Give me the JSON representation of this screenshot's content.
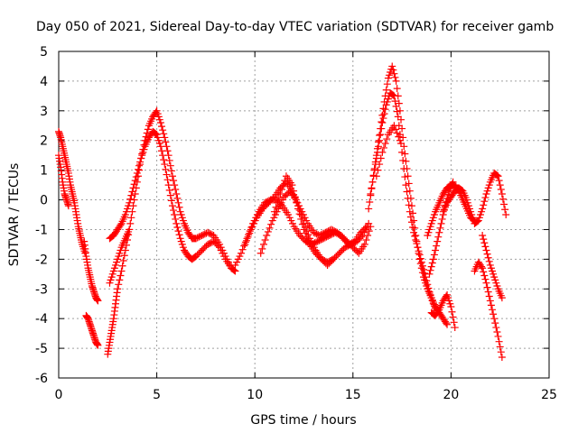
{
  "chart_data": {
    "type": "scatter",
    "title": "Day 050 of 2021, Sidereal Day-to-day VTEC variation (SDTVAR) for receiver gamb",
    "xlabel": "GPS time / hours",
    "ylabel": "SDTVAR / TECUs",
    "xlim": [
      0,
      25
    ],
    "ylim": [
      -6,
      5
    ],
    "xticks": [
      0,
      5,
      10,
      15,
      20,
      25
    ],
    "yticks": [
      -6,
      -5,
      -4,
      -3,
      -2,
      -1,
      0,
      1,
      2,
      3,
      4,
      5
    ],
    "grid": true,
    "marker": "+",
    "color": "#ff0000",
    "series": [
      {
        "name": "SDTVAR",
        "tracks": [
          {
            "x": [
              0.0,
              0.1,
              0.2,
              0.3,
              0.4,
              0.5,
              0.6,
              0.7,
              0.8,
              0.9,
              1.0,
              1.1,
              1.2,
              1.35
            ],
            "y": [
              2.3,
              2.1,
              1.8,
              1.5,
              1.2,
              0.9,
              0.5,
              0.2,
              -0.1,
              -0.5,
              -0.9,
              -1.2,
              -1.5,
              -1.8
            ]
          },
          {
            "x": [
              0.0,
              0.1,
              0.2,
              0.3,
              0.4,
              0.5
            ],
            "y": [
              1.5,
              1.1,
              0.6,
              0.2,
              0.0,
              -0.2
            ]
          },
          {
            "x": [
              1.3,
              1.4,
              1.5,
              1.6,
              1.7,
              1.8,
              1.9,
              2.0
            ],
            "y": [
              -1.4,
              -1.9,
              -2.3,
              -2.6,
              -2.9,
              -3.1,
              -3.3,
              -3.4
            ]
          },
          {
            "x": [
              1.4,
              1.5,
              1.6,
              1.7,
              1.8,
              1.9,
              2.0
            ],
            "y": [
              -3.9,
              -4.0,
              -4.2,
              -4.4,
              -4.6,
              -4.8,
              -4.9
            ]
          },
          {
            "x": [
              2.5,
              2.6,
              2.7,
              2.8,
              2.9,
              3.0,
              3.2,
              3.4,
              3.6,
              3.8,
              4.0,
              4.2,
              4.4,
              4.6,
              4.8,
              5.0,
              5.2,
              5.4,
              5.6,
              5.8,
              6.0,
              6.2,
              6.4,
              6.6,
              6.8,
              7.0,
              7.3,
              7.6,
              7.9,
              8.2,
              8.5,
              8.8,
              9.0
            ],
            "y": [
              -5.2,
              -4.8,
              -4.4,
              -4.0,
              -3.5,
              -3.0,
              -2.4,
              -1.7,
              -1.0,
              -0.2,
              0.6,
              1.4,
              2.0,
              2.5,
              2.8,
              3.0,
              2.6,
              2.1,
              1.5,
              0.8,
              0.2,
              -0.4,
              -0.8,
              -1.1,
              -1.3,
              -1.3,
              -1.2,
              -1.1,
              -1.2,
              -1.5,
              -1.9,
              -2.3,
              -2.4
            ]
          },
          {
            "x": [
              2.6,
              2.8,
              3.0,
              3.2,
              3.4,
              3.6,
              3.8,
              4.0,
              4.2,
              4.4,
              4.6,
              4.8,
              5.0,
              5.2,
              5.4,
              5.6,
              5.8,
              6.0,
              6.2,
              6.4,
              6.6,
              6.8,
              7.0,
              7.3,
              7.6,
              7.9,
              8.2,
              8.5,
              8.8
            ],
            "y": [
              -1.3,
              -1.2,
              -1.0,
              -0.8,
              -0.5,
              -0.1,
              0.4,
              0.9,
              1.4,
              1.8,
              2.1,
              2.3,
              2.2,
              1.8,
              1.2,
              0.5,
              -0.2,
              -0.8,
              -1.3,
              -1.7,
              -1.9,
              -2.0,
              -1.9,
              -1.7,
              -1.5,
              -1.4,
              -1.6,
              -2.0,
              -2.3
            ]
          },
          {
            "x": [
              2.6,
              2.8,
              3.0,
              3.2,
              3.4,
              3.6
            ],
            "y": [
              -2.8,
              -2.4,
              -2.0,
              -1.6,
              -1.3,
              -1.0
            ]
          },
          {
            "x": [
              9.0,
              9.3,
              9.6,
              9.9,
              10.2,
              10.5,
              10.8,
              11.1,
              11.4,
              11.7,
              12.0,
              12.3,
              12.6,
              12.9,
              13.2,
              13.5,
              13.8,
              14.1,
              14.4,
              14.7,
              15.0,
              15.3,
              15.6,
              15.9
            ],
            "y": [
              -2.2,
              -1.8,
              -1.3,
              -0.8,
              -0.4,
              -0.1,
              0.0,
              0.0,
              -0.2,
              -0.5,
              -0.9,
              -1.2,
              -1.4,
              -1.5,
              -1.4,
              -1.3,
              -1.2,
              -1.1,
              -1.2,
              -1.4,
              -1.6,
              -1.8,
              -1.5,
              -0.9
            ]
          },
          {
            "x": [
              9.5,
              9.8,
              10.1,
              10.4,
              10.7,
              11.0,
              11.3,
              11.6,
              11.9,
              12.2,
              12.5,
              12.8,
              13.1,
              13.4,
              13.7,
              14.0,
              14.3,
              14.6,
              14.9,
              15.2,
              15.5,
              15.8
            ],
            "y": [
              -1.5,
              -1.0,
              -0.6,
              -0.3,
              -0.1,
              0.1,
              0.4,
              0.6,
              0.3,
              -0.2,
              -0.8,
              -1.3,
              -1.7,
              -2.0,
              -2.1,
              -2.0,
              -1.8,
              -1.6,
              -1.5,
              -1.4,
              -1.2,
              -0.8
            ]
          },
          {
            "x": [
              10.3,
              10.6,
              10.9,
              11.2,
              11.5,
              11.8,
              12.1,
              12.4,
              12.7,
              13.0,
              13.3,
              13.6,
              13.9,
              14.2,
              14.5,
              14.8,
              15.1,
              15.4,
              15.7
            ],
            "y": [
              -1.8,
              -1.2,
              -0.7,
              -0.3,
              0.1,
              0.3,
              0.0,
              -0.4,
              -0.8,
              -1.1,
              -1.2,
              -1.1,
              -1.0,
              -1.1,
              -1.3,
              -1.5,
              -1.4,
              -1.1,
              -0.9
            ]
          },
          {
            "x": [
              11.0,
              11.3,
              11.6,
              11.9,
              12.2,
              12.5,
              12.8,
              13.1,
              13.4,
              13.7,
              14.0
            ],
            "y": [
              -0.4,
              0.2,
              0.8,
              0.5,
              -0.3,
              -1.0,
              -1.5,
              -1.8,
              -2.0,
              -2.2,
              -2.0
            ]
          },
          {
            "x": [
              15.8,
              16.0,
              16.2,
              16.4,
              16.6,
              16.8,
              17.0,
              17.2,
              17.4,
              17.6,
              17.8,
              18.0,
              18.2,
              18.4,
              18.6,
              18.8,
              19.0,
              19.2,
              19.4,
              19.6,
              19.8
            ],
            "y": [
              -0.3,
              0.6,
              1.5,
              2.4,
              3.3,
              4.1,
              4.5,
              4.0,
              3.0,
              1.8,
              0.8,
              -0.2,
              -1.2,
              -2.0,
              -2.6,
              -3.0,
              -3.3,
              -3.6,
              -3.8,
              -4.0,
              -4.2
            ]
          },
          {
            "x": [
              15.9,
              16.1,
              16.3,
              16.5,
              16.7,
              16.9,
              17.1,
              17.3,
              17.5,
              17.7,
              17.9,
              18.1,
              18.3,
              18.5,
              18.7,
              18.9,
              19.1,
              19.3
            ],
            "y": [
              0.2,
              1.0,
              1.8,
              2.6,
              3.2,
              3.6,
              3.5,
              2.8,
              1.6,
              0.5,
              -0.4,
              -1.1,
              -1.6,
              -2.1,
              -2.6,
              -3.1,
              -3.5,
              -3.8
            ]
          },
          {
            "x": [
              16.2,
              16.5,
              16.8,
              17.1,
              17.4
            ],
            "y": [
              0.8,
              1.6,
              2.2,
              2.5,
              2.0
            ]
          },
          {
            "x": [
              18.8,
              19.0,
              19.2,
              19.4,
              19.6,
              19.8,
              20.0,
              20.2,
              20.4,
              20.6,
              20.8,
              21.0,
              21.2
            ],
            "y": [
              -1.2,
              -0.8,
              -0.4,
              -0.1,
              0.2,
              0.4,
              0.5,
              0.5,
              0.3,
              0.0,
              -0.3,
              -0.6,
              -0.7
            ]
          },
          {
            "x": [
              18.9,
              19.1,
              19.3,
              19.5,
              19.7,
              19.9,
              20.1
            ],
            "y": [
              -2.5,
              -2.0,
              -1.4,
              -0.8,
              -0.2,
              0.3,
              0.6
            ]
          },
          {
            "x": [
              19.0,
              19.2,
              19.4,
              19.6,
              19.8,
              20.0,
              20.2
            ],
            "y": [
              -3.8,
              -3.9,
              -3.7,
              -3.4,
              -3.2,
              -3.6,
              -4.3
            ]
          },
          {
            "x": [
              19.6,
              19.8,
              20.0,
              20.2,
              20.4,
              20.6,
              20.8,
              21.0,
              21.2,
              21.4,
              21.6,
              21.8,
              22.0,
              22.2,
              22.4,
              22.6,
              22.8
            ],
            "y": [
              -0.4,
              -0.1,
              0.1,
              0.3,
              0.4,
              0.3,
              0.0,
              -0.4,
              -0.8,
              -0.7,
              -0.3,
              0.2,
              0.6,
              0.9,
              0.8,
              0.2,
              -0.5
            ]
          },
          {
            "x": [
              21.2,
              21.4,
              21.6,
              21.8,
              22.0,
              22.2,
              22.4,
              22.6
            ],
            "y": [
              -2.4,
              -2.1,
              -2.3,
              -2.8,
              -3.4,
              -4.0,
              -4.6,
              -5.3
            ]
          },
          {
            "x": [
              21.6,
              21.8,
              22.0,
              22.2,
              22.4,
              22.6
            ],
            "y": [
              -1.2,
              -1.7,
              -2.2,
              -2.6,
              -3.0,
              -3.3
            ]
          }
        ]
      }
    ]
  }
}
